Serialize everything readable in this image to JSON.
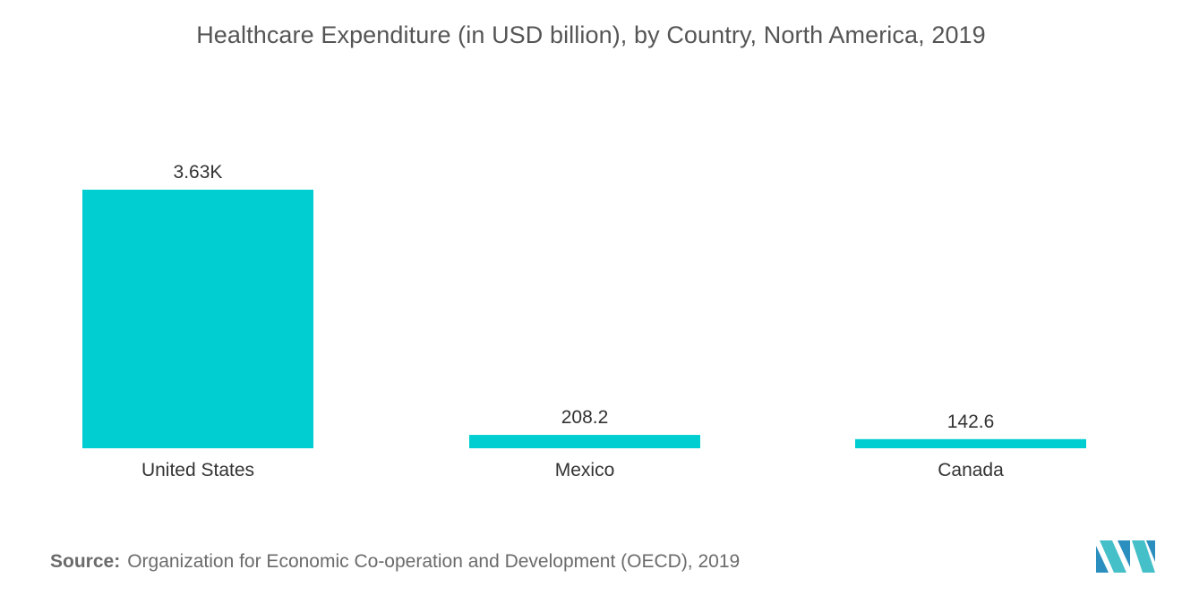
{
  "chart_data": {
    "type": "bar",
    "title": "Healthcare Expenditure (in USD billion), by Country, North America, 2019",
    "categories": [
      "United States",
      "Mexico",
      "Canada"
    ],
    "values": [
      3630,
      208.2,
      142.6
    ],
    "data_labels": [
      "3.63K",
      "208.2",
      "142.6"
    ],
    "xlabel": "",
    "ylabel": "",
    "ylim": [
      0,
      3630
    ],
    "grid": false,
    "legend": "none",
    "bar_color": "#00CED1"
  },
  "source": {
    "label": "Source:",
    "text": "Organization for Economic Co-operation and Development (OECD), 2019"
  },
  "logo": {
    "name": "mordor-intelligence-logo",
    "colors": [
      "#2a8fbf",
      "#45c0c8"
    ]
  }
}
